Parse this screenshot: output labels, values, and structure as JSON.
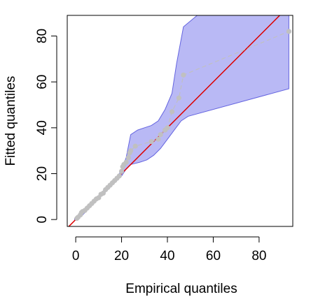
{
  "chart_data": {
    "type": "scatter",
    "title": "",
    "xlabel": "Empirical quantiles",
    "ylabel": "Fitted quantiles",
    "xlim": [
      -3.7,
      94.7
    ],
    "ylim": [
      -3.0,
      89.0
    ],
    "x_ticks": [
      0,
      20,
      40,
      60,
      80
    ],
    "y_ticks": [
      0,
      20,
      40,
      60,
      80
    ],
    "x_tick_labels": [
      "0",
      "20",
      "40",
      "60",
      "80"
    ],
    "y_tick_labels": [
      "0",
      "20",
      "40",
      "60",
      "80"
    ],
    "grid": false,
    "legend": "none",
    "reference_line": {
      "slope": 1,
      "intercept": 0,
      "color": "#dd0000"
    },
    "band": {
      "fill": "#b9b9f5",
      "stroke": "#6464e0",
      "upper": [
        [
          -0.5,
          0.5
        ],
        [
          1,
          2
        ],
        [
          3,
          3.5
        ],
        [
          6,
          6.5
        ],
        [
          9,
          9.5
        ],
        [
          12,
          12.5
        ],
        [
          15,
          15.5
        ],
        [
          18,
          18.5
        ],
        [
          20,
          21.5
        ],
        [
          22,
          27
        ],
        [
          24,
          37
        ],
        [
          27,
          39
        ],
        [
          30,
          40
        ],
        [
          33,
          41
        ],
        [
          36,
          43
        ],
        [
          39,
          48
        ],
        [
          42,
          55
        ],
        [
          44,
          68
        ],
        [
          47,
          84
        ],
        [
          53,
          89
        ],
        [
          93,
          89
        ]
      ],
      "lower": [
        [
          93,
          57
        ],
        [
          49,
          45
        ],
        [
          46,
          43
        ],
        [
          43,
          39
        ],
        [
          40,
          35
        ],
        [
          37,
          31
        ],
        [
          34,
          28
        ],
        [
          31,
          26
        ],
        [
          28,
          25
        ],
        [
          24,
          24
        ],
        [
          22,
          22
        ],
        [
          20,
          19
        ],
        [
          17,
          16
        ],
        [
          14,
          13
        ],
        [
          11,
          10
        ],
        [
          8,
          7
        ],
        [
          5,
          4
        ],
        [
          2,
          1
        ],
        [
          -0.5,
          -0.5
        ]
      ]
    },
    "series": [
      {
        "color": "#c0c0c0",
        "x": [
          0.5,
          1,
          2,
          2.5,
          3,
          4,
          5,
          6,
          7,
          8,
          9,
          10,
          11,
          12,
          13,
          14,
          15,
          16,
          17,
          18,
          19,
          20,
          20.5,
          21,
          22,
          23,
          23.5,
          24,
          26,
          33,
          36,
          37,
          39,
          40,
          42,
          45,
          47,
          93
        ],
        "y": [
          0.5,
          1,
          2,
          3,
          3.5,
          4,
          5,
          6,
          7,
          8,
          9,
          9.5,
          11,
          11.5,
          13,
          14,
          15,
          16,
          17,
          18,
          19,
          21,
          23,
          24,
          25,
          27,
          29,
          30,
          32,
          34,
          35,
          37,
          39,
          40,
          47,
          53,
          63,
          82
        ]
      }
    ]
  }
}
